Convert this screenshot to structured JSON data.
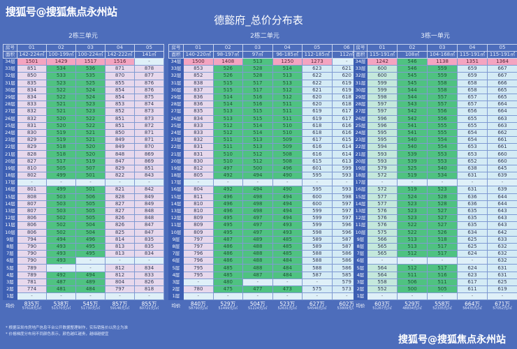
{
  "watermark": "搜狐号@搜狐焦点永州站",
  "title": "德懿府_总价分布表",
  "labels": {
    "room": "房号",
    "area": "面积",
    "avg": "均价"
  },
  "floors": [
    "34层",
    "33层",
    "32层",
    "31层",
    "30层",
    "29层",
    "28层",
    "27层",
    "26层",
    "25层",
    "24层",
    "23层",
    "22层",
    "21层",
    "20层",
    "19层",
    "18层",
    "17层",
    "16层",
    "15层",
    "14层",
    "13层",
    "12层",
    "11层",
    "10层",
    "9层",
    "8层",
    "7层",
    "6层",
    "5层",
    "4层",
    "3层",
    "2层",
    "1层"
  ],
  "colors": {
    "background": "#4d6dbb",
    "expensive": "#f4a4c0",
    "cheap": "#4fc281",
    "mid": "#e7d8ec",
    "light": "#d4ebf5"
  },
  "tables": [
    {
      "name": "2栋三单元",
      "rooms": [
        "01",
        "02",
        "03",
        "04",
        "05"
      ],
      "areas": [
        "142-224㎡",
        "100-199㎡",
        "100-224㎡",
        "142-222㎡",
        "141㎡"
      ],
      "column_colors": [
        "lav",
        "green",
        "green",
        "lav",
        "lav"
      ],
      "top_colors": [
        "pink",
        "pink",
        "pink",
        "pink",
        "empty"
      ],
      "rows": [
        [
          "1501",
          "1429",
          "1517",
          "1516",
          "-"
        ],
        [
          "851",
          "534",
          "536",
          "871",
          "878"
        ],
        [
          "850",
          "533",
          "535",
          "870",
          "877"
        ],
        [
          "835",
          "523",
          "525",
          "855",
          "876"
        ],
        [
          "834",
          "522",
          "524",
          "854",
          "876"
        ],
        [
          "834",
          "522",
          "524",
          "854",
          "875"
        ],
        [
          "833",
          "521",
          "523",
          "853",
          "874"
        ],
        [
          "832",
          "521",
          "523",
          "852",
          "873"
        ],
        [
          "832",
          "520",
          "522",
          "851",
          "873"
        ],
        [
          "831",
          "520",
          "522",
          "851",
          "872"
        ],
        [
          "830",
          "519",
          "521",
          "850",
          "871"
        ],
        [
          "829",
          "519",
          "521",
          "849",
          "871"
        ],
        [
          "829",
          "518",
          "520",
          "849",
          "870"
        ],
        [
          "828",
          "518",
          "520",
          "848",
          "869"
        ],
        [
          "827",
          "517",
          "519",
          "847",
          "869"
        ],
        [
          "810",
          "505",
          "507",
          "829",
          "851"
        ],
        [
          "802",
          "499",
          "501",
          "822",
          "843"
        ],
        [
          "-",
          "-",
          "-",
          "-",
          "-"
        ],
        [
          "801",
          "499",
          "501",
          "821",
          "842"
        ],
        [
          "808",
          "503",
          "506",
          "828",
          "849"
        ],
        [
          "807",
          "503",
          "505",
          "827",
          "849"
        ],
        [
          "807",
          "503",
          "505",
          "827",
          "848"
        ],
        [
          "806",
          "502",
          "505",
          "826",
          "848"
        ],
        [
          "806",
          "502",
          "504",
          "826",
          "847"
        ],
        [
          "806",
          "502",
          "504",
          "825",
          "847"
        ],
        [
          "794",
          "494",
          "496",
          "814",
          "835"
        ],
        [
          "790",
          "493",
          "495",
          "813",
          "835"
        ],
        [
          "790",
          "493",
          "495",
          "813",
          "834"
        ],
        [
          "790",
          "493",
          "-",
          "-",
          "-"
        ],
        [
          "789",
          "-",
          "-",
          "812",
          "834"
        ],
        [
          "789",
          "492",
          "494",
          "812",
          "833"
        ],
        [
          "781",
          "487",
          "489",
          "804",
          "826"
        ],
        [
          "774",
          "481",
          "484",
          "797",
          "818"
        ],
        [
          "-",
          "-",
          "-",
          "-",
          "-"
        ]
      ],
      "avg_total": [
        "835万",
        "538万",
        "545万",
        "857万",
        "855万"
      ],
      "avg_unit": [
        "57618元/㎡",
        "51570元/㎡",
        "51730元/㎡",
        "59146元/㎡",
        "60721元/㎡"
      ]
    },
    {
      "name": "2栋二单元",
      "rooms": [
        "01",
        "02",
        "03",
        "04",
        "05",
        "06"
      ],
      "areas": [
        "140-220㎡",
        "98-197㎡",
        "97㎡",
        "96-185㎡",
        "112-185㎡",
        "112㎡"
      ],
      "column_colors": [
        "lav",
        "green",
        "green",
        "green",
        "blue",
        "blue"
      ],
      "top_colors": [
        "pink",
        "pink",
        "green",
        "pink",
        "pink",
        "empty"
      ],
      "rows": [
        [
          "1500",
          "1408",
          "513",
          "1250",
          "1273",
          "-"
        ],
        [
          "853",
          "526",
          "528",
          "514",
          "623",
          "621"
        ],
        [
          "852",
          "526",
          "528",
          "513",
          "622",
          "620"
        ],
        [
          "838",
          "515",
          "517",
          "513",
          "622",
          "619"
        ],
        [
          "837",
          "515",
          "517",
          "512",
          "621",
          "619"
        ],
        [
          "836",
          "514",
          "516",
          "512",
          "620",
          "618"
        ],
        [
          "836",
          "514",
          "516",
          "511",
          "620",
          "618"
        ],
        [
          "835",
          "513",
          "515",
          "511",
          "619",
          "617"
        ],
        [
          "834",
          "513",
          "515",
          "511",
          "619",
          "617"
        ],
        [
          "833",
          "512",
          "514",
          "510",
          "618",
          "616"
        ],
        [
          "833",
          "512",
          "514",
          "510",
          "618",
          "616"
        ],
        [
          "832",
          "511",
          "513",
          "509",
          "617",
          "615"
        ],
        [
          "831",
          "511",
          "513",
          "509",
          "616",
          "614"
        ],
        [
          "831",
          "510",
          "512",
          "508",
          "616",
          "614"
        ],
        [
          "830",
          "510",
          "512",
          "508",
          "615",
          "613"
        ],
        [
          "812",
          "497",
          "500",
          "496",
          "601",
          "599"
        ],
        [
          "805",
          "492",
          "494",
          "490",
          "595",
          "593"
        ],
        [
          "-",
          "-",
          "-",
          "-",
          "-",
          "-"
        ],
        [
          "804",
          "492",
          "494",
          "490",
          "595",
          "593"
        ],
        [
          "811",
          "496",
          "498",
          "494",
          "600",
          "598"
        ],
        [
          "810",
          "496",
          "498",
          "494",
          "600",
          "597"
        ],
        [
          "810",
          "496",
          "498",
          "494",
          "599",
          "597"
        ],
        [
          "809",
          "495",
          "497",
          "494",
          "599",
          "597"
        ],
        [
          "809",
          "495",
          "497",
          "493",
          "599",
          "596"
        ],
        [
          "809",
          "495",
          "497",
          "493",
          "598",
          "596"
        ],
        [
          "797",
          "487",
          "489",
          "485",
          "589",
          "587"
        ],
        [
          "797",
          "486",
          "488",
          "485",
          "589",
          "587"
        ],
        [
          "796",
          "486",
          "488",
          "485",
          "588",
          "586"
        ],
        [
          "796",
          "486",
          "488",
          "484",
          "588",
          "586"
        ],
        [
          "795",
          "485",
          "488",
          "484",
          "588",
          "586"
        ],
        [
          "795",
          "485",
          "487",
          "484",
          "587",
          "585"
        ],
        [
          "-",
          "480",
          "-",
          "-",
          "-",
          "579"
        ],
        [
          "780",
          "475",
          "477",
          "473",
          "575",
          "573"
        ],
        [
          "-",
          "-",
          "-",
          "-",
          "-",
          "-"
        ]
      ],
      "avg_total": [
        "840万",
        "529万",
        "504万",
        "523万",
        "627万",
        "602万"
      ],
      "avg_unit": [
        "58790元/㎡",
        "51499元/㎡",
        "51224元/㎡",
        "52631元/㎡",
        "54546元/㎡",
        "53809元/㎡"
      ]
    },
    {
      "name": "3栋一单元",
      "rooms": [
        "01",
        "02",
        "03",
        "04",
        "05"
      ],
      "areas": [
        "115-191㎡",
        "108㎡",
        "104-168㎡",
        "115-191㎡",
        "115-191㎡"
      ],
      "column_colors": [
        "lgreen",
        "green",
        "green",
        "blue",
        "blue"
      ],
      "top_colors": [
        "pink",
        "green",
        "pink",
        "pink",
        "pink"
      ],
      "rows": [
        [
          "1242",
          "546",
          "1138",
          "1351",
          "1364"
        ],
        [
          "600",
          "546",
          "559",
          "659",
          "667"
        ],
        [
          "600",
          "545",
          "559",
          "659",
          "667"
        ],
        [
          "599",
          "545",
          "558",
          "658",
          "666"
        ],
        [
          "599",
          "544",
          "558",
          "658",
          "665"
        ],
        [
          "598",
          "544",
          "557",
          "657",
          "665"
        ],
        [
          "597",
          "543",
          "557",
          "657",
          "664"
        ],
        [
          "597",
          "542",
          "556",
          "656",
          "664"
        ],
        [
          "596",
          "542",
          "556",
          "655",
          "663"
        ],
        [
          "596",
          "541",
          "555",
          "655",
          "663"
        ],
        [
          "595",
          "541",
          "555",
          "654",
          "662"
        ],
        [
          "595",
          "540",
          "554",
          "654",
          "661"
        ],
        [
          "594",
          "540",
          "554",
          "653",
          "661"
        ],
        [
          "593",
          "539",
          "553",
          "653",
          "660"
        ],
        [
          "593",
          "539",
          "553",
          "652",
          "660"
        ],
        [
          "579",
          "525",
          "540",
          "638",
          "645"
        ],
        [
          "572",
          "519",
          "534",
          "631",
          "639"
        ],
        [
          "-",
          "-",
          "-",
          "-",
          "-"
        ],
        [
          "572",
          "519",
          "523",
          "631",
          "639"
        ],
        [
          "577",
          "524",
          "528",
          "636",
          "644"
        ],
        [
          "577",
          "523",
          "528",
          "636",
          "644"
        ],
        [
          "576",
          "523",
          "527",
          "635",
          "643"
        ],
        [
          "576",
          "523",
          "527",
          "635",
          "643"
        ],
        [
          "576",
          "522",
          "527",
          "635",
          "643"
        ],
        [
          "575",
          "522",
          "526",
          "634",
          "642"
        ],
        [
          "566",
          "513",
          "518",
          "625",
          "633"
        ],
        [
          "565",
          "513",
          "517",
          "625",
          "632"
        ],
        [
          "565",
          "512",
          "517",
          "624",
          "632"
        ],
        [
          "-",
          "-",
          "-",
          "-",
          "632"
        ],
        [
          "564",
          "512",
          "517",
          "624",
          "631"
        ],
        [
          "564",
          "511",
          "516",
          "623",
          "631"
        ],
        [
          "558",
          "506",
          "511",
          "617",
          "625"
        ],
        [
          "552",
          "500",
          "505",
          "611",
          "619"
        ],
        [
          "-",
          "-",
          "-",
          "-",
          "-"
        ]
      ],
      "avg_total": [
        "603万",
        "529万",
        "558万",
        "664万",
        "671万"
      ],
      "avg_unit": [
        "51267元/㎡",
        "48834元/㎡",
        "52335元/㎡",
        "56435元/㎡",
        "57052元/㎡"
      ]
    }
  ],
  "notes": [
    "* 根据深圳市房地产信息平台公开数据整理制作，实际销售价以房企为准",
    "* 价格梯度分布用不同颜色表示，颜色越红越贵，越绿越便宜"
  ]
}
